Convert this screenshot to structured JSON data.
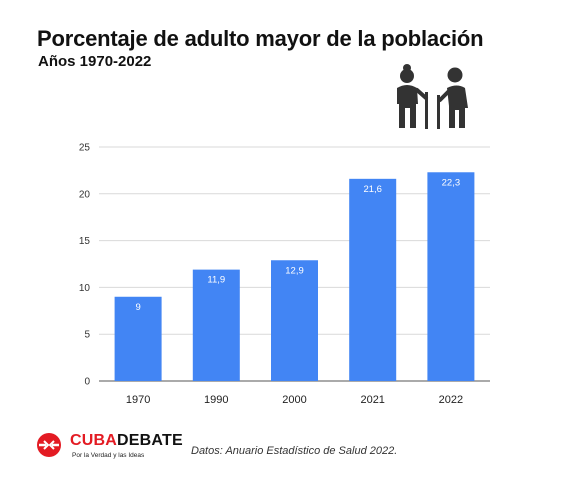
{
  "header": {
    "title": "Porcentaje de adulto mayor de la población",
    "subtitle": "Años 1970-2022"
  },
  "icons": {
    "people": "elderly-couple-icon",
    "logo": "cubadebate-logo-icon"
  },
  "footer": {
    "brand_part1": "CUBA",
    "brand_part2": "DEBATE",
    "tagline": "Por la Verdad y las Ideas",
    "source": "Datos: Anuario Estadístico de Salud 2022."
  },
  "colors": {
    "bar": "#4285f4",
    "brand_red": "#e31b23",
    "grid": "#d9d9d9"
  },
  "chart_data": {
    "type": "bar",
    "title": "Porcentaje de adulto mayor de la población",
    "subtitle": "Años 1970-2022",
    "categories": [
      "1970",
      "1990",
      "2000",
      "2021",
      "2022"
    ],
    "values": [
      9,
      11.9,
      12.9,
      21.6,
      22.3
    ],
    "value_labels": [
      "9",
      "11,9",
      "12,9",
      "21,6",
      "22,3"
    ],
    "yticks": [
      "0",
      "5",
      "10",
      "15",
      "20",
      "25"
    ],
    "ylim": [
      0,
      25
    ],
    "xlabel": "",
    "ylabel": "",
    "grid": true,
    "legend": false
  }
}
